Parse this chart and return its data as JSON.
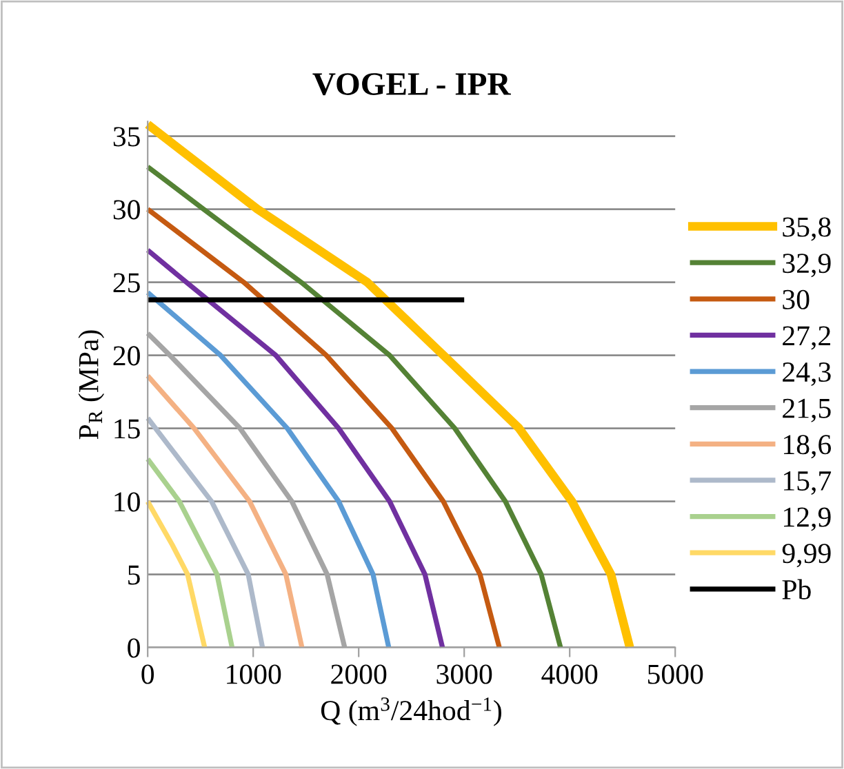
{
  "chart_data": {
    "type": "line",
    "title": "VOGEL - IPR",
    "xlabel": "Q (m$^{3}$/24hod$^{−1}$)",
    "ylabel": "P$_{R}$ (MPa)",
    "xlim": [
      0,
      5000
    ],
    "xticks": [
      0,
      1000,
      2000,
      3000,
      4000,
      5000
    ],
    "ylim": [
      0,
      36
    ],
    "yticks": [
      0,
      5,
      10,
      15,
      20,
      25,
      30,
      35
    ],
    "grid": "y",
    "legend": "right",
    "marker": "none",
    "line_style": "solid",
    "series": [
      {
        "name": "35,8",
        "color": "#ffc000",
        "x": [
          0,
          1040,
          2080,
          2803,
          3520,
          4021,
          4391,
          4570
        ],
        "values": [
          35.8,
          30,
          25,
          20,
          15,
          10,
          5,
          0
        ]
      },
      {
        "name": "32,9",
        "color": "#548235",
        "x": [
          0,
          530,
          1454,
          2293,
          2911,
          3390,
          3730,
          3913
        ],
        "values": [
          32.9,
          30,
          25,
          20,
          15,
          10,
          5,
          0
        ]
      },
      {
        "name": "30",
        "color": "#c55a11",
        "x": [
          0,
          910,
          1693,
          2315,
          2802,
          3150,
          3333
        ],
        "values": [
          30,
          25,
          20,
          15,
          10,
          5,
          0
        ]
      },
      {
        "name": "27,2",
        "color": "#7030a0",
        "x": [
          0,
          366,
          1214,
          1810,
          2293,
          2628,
          2794
        ],
        "values": [
          27.2,
          25,
          20,
          15,
          10,
          5,
          0
        ]
      },
      {
        "name": "24,3",
        "color": "#5b9bd5",
        "x": [
          0,
          690,
          1323,
          1810,
          2136,
          2285
        ],
        "values": [
          24.3,
          20,
          15,
          10,
          5,
          0
        ]
      },
      {
        "name": "21,5",
        "color": "#a5a5a5",
        "x": [
          0,
          210,
          875,
          1366,
          1701,
          1867
        ],
        "values": [
          21.5,
          20,
          15,
          10,
          5,
          0
        ]
      },
      {
        "name": "18,6",
        "color": "#f4b183",
        "x": [
          0,
          440,
          966,
          1310,
          1462
        ],
        "values": [
          18.6,
          15,
          10,
          5,
          0
        ]
      },
      {
        "name": "15,7",
        "color": "#adb9ca",
        "x": [
          0,
          605,
          953,
          1088
        ],
        "values": [
          15.7,
          10,
          5,
          0
        ]
      },
      {
        "name": "12,9",
        "color": "#a9d18e",
        "x": [
          0,
          300,
          657,
          800
        ],
        "values": [
          12.9,
          10,
          5,
          0
        ]
      },
      {
        "name": "9,99",
        "color": "#ffd966",
        "x": [
          0,
          235,
          378,
          540
        ],
        "values": [
          9.99,
          7,
          5,
          0
        ]
      },
      {
        "name": "Pb",
        "color": "#000000",
        "x": [
          0,
          3000
        ],
        "values": [
          23.8,
          23.8
        ]
      }
    ]
  }
}
